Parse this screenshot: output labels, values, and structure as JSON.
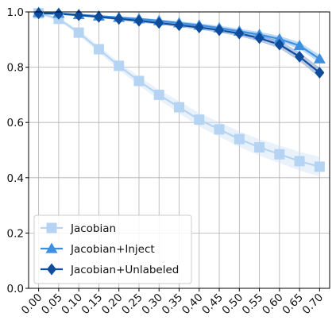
{
  "chart_data": {
    "type": "line",
    "title": "",
    "xlabel": "",
    "ylabel": "",
    "x": [
      0.0,
      0.05,
      0.1,
      0.15,
      0.2,
      0.25,
      0.3,
      0.35,
      0.4,
      0.45,
      0.5,
      0.55,
      0.6,
      0.65,
      0.7
    ],
    "x_tick_labels": [
      "0.00",
      "0.05",
      "0.10",
      "0.15",
      "0.20",
      "0.25",
      "0.30",
      "0.35",
      "0.40",
      "0.45",
      "0.50",
      "0.55",
      "0.60",
      "0.65",
      "0.70"
    ],
    "y_tick_labels": [
      "0.0",
      "0.2",
      "0.4",
      "0.6",
      "0.8",
      "1.0"
    ],
    "y_ticks": [
      0.0,
      0.2,
      0.4,
      0.6,
      0.8,
      1.0
    ],
    "xlim": [
      -0.025,
      0.725
    ],
    "ylim": [
      0.0,
      1.0
    ],
    "grid": true,
    "legend_position": "lower-left",
    "series": [
      {
        "name": "Jacobian",
        "marker": "square",
        "color": "#b5d4f4",
        "band_color": "#cfe2f7",
        "values": [
          0.995,
          0.975,
          0.925,
          0.865,
          0.805,
          0.75,
          0.7,
          0.655,
          0.61,
          0.575,
          0.54,
          0.51,
          0.485,
          0.46,
          0.44
        ],
        "band_half_width": [
          0.004,
          0.006,
          0.01,
          0.012,
          0.014,
          0.016,
          0.018,
          0.022,
          0.024,
          0.026,
          0.028,
          0.03,
          0.032,
          0.034,
          0.036
        ]
      },
      {
        "name": "Jacobian+Inject",
        "marker": "triangle",
        "color": "#3d8fe0",
        "band_color": "#6aaaf0",
        "values": [
          0.998,
          0.995,
          0.99,
          0.985,
          0.98,
          0.975,
          0.968,
          0.96,
          0.952,
          0.942,
          0.93,
          0.918,
          0.902,
          0.878,
          0.83
        ],
        "band_half_width": [
          0.002,
          0.002,
          0.003,
          0.003,
          0.004,
          0.004,
          0.005,
          0.006,
          0.007,
          0.008,
          0.009,
          0.01,
          0.011,
          0.012,
          0.014
        ]
      },
      {
        "name": "Jacobian+Unlabeled",
        "marker": "diamond",
        "color": "#0f4c9c",
        "band_color": "#5f86c0",
        "values": [
          0.995,
          0.993,
          0.988,
          0.982,
          0.975,
          0.968,
          0.96,
          0.952,
          0.944,
          0.934,
          0.922,
          0.905,
          0.882,
          0.838,
          0.78
        ],
        "band_half_width": [
          0.002,
          0.003,
          0.003,
          0.004,
          0.005,
          0.006,
          0.006,
          0.007,
          0.008,
          0.009,
          0.01,
          0.012,
          0.014,
          0.016,
          0.018
        ]
      }
    ]
  }
}
